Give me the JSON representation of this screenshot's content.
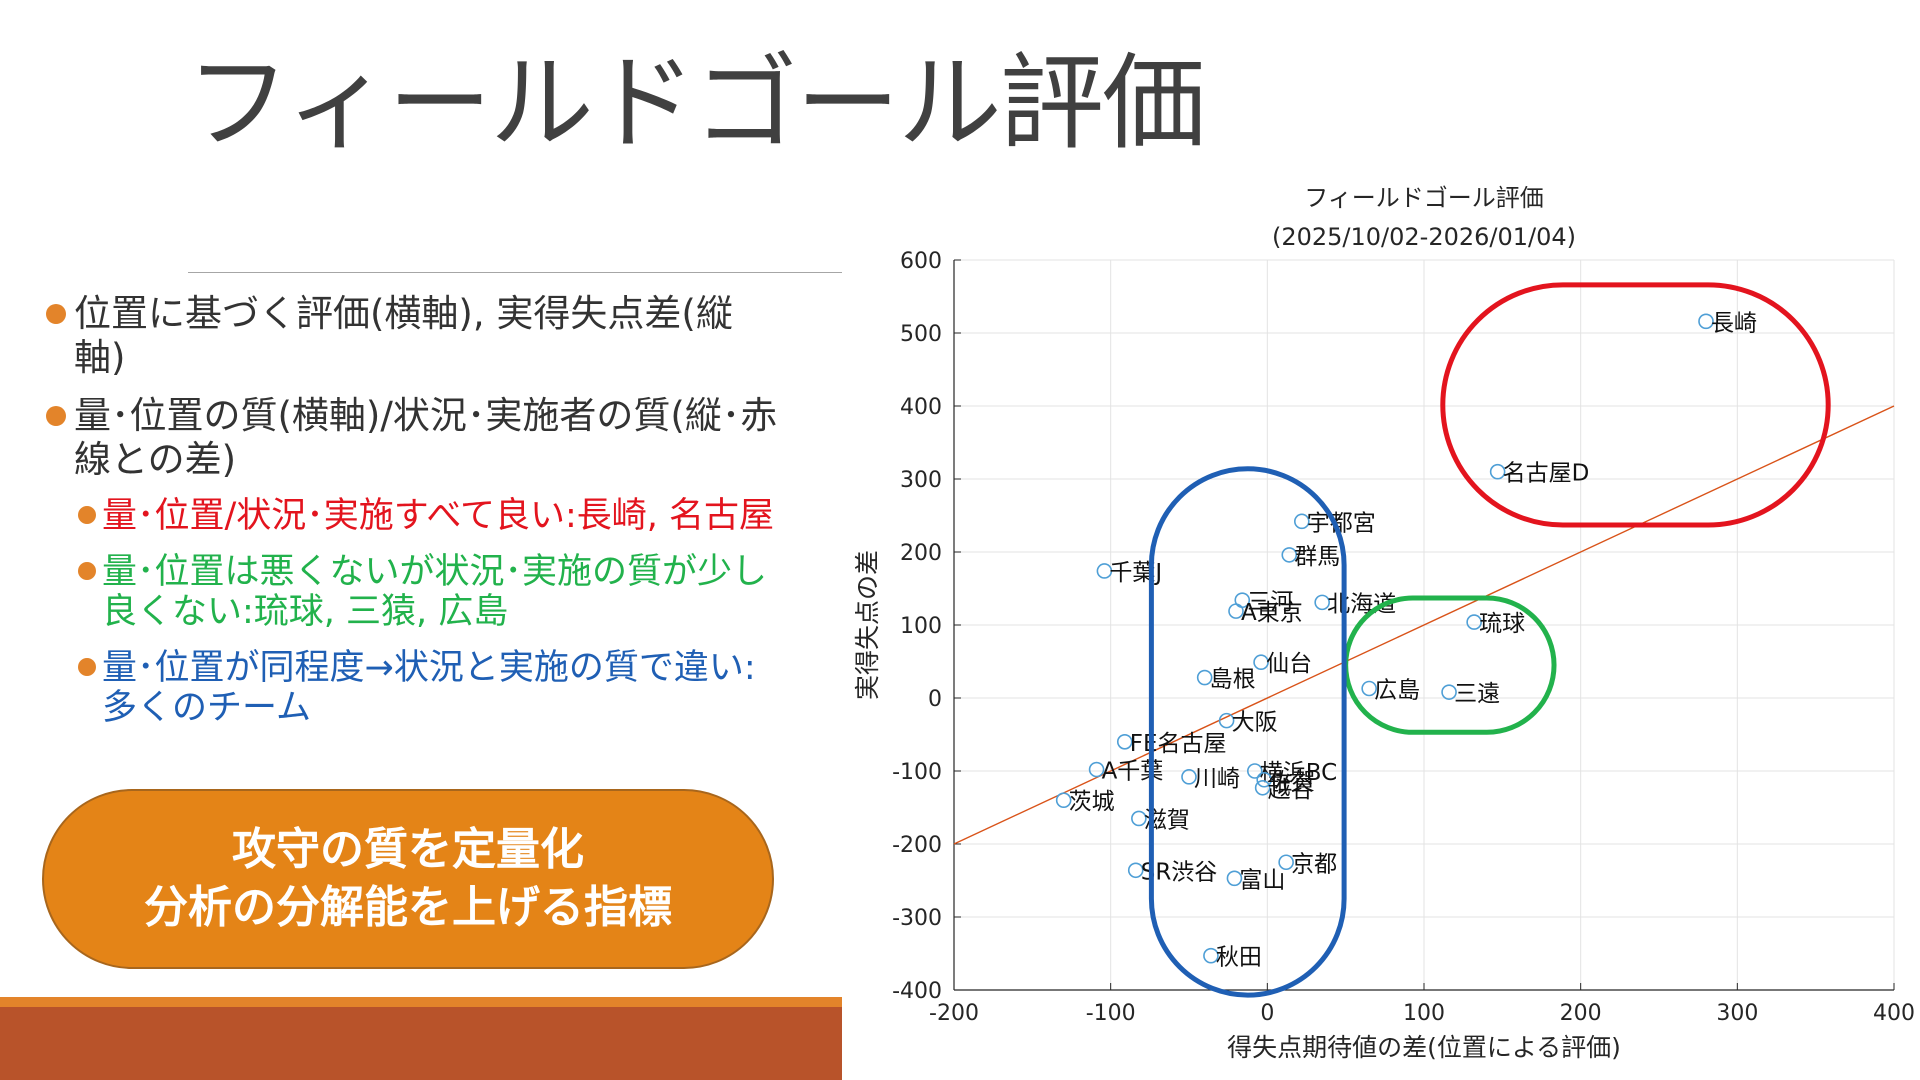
{
  "slide": {
    "title": "フィールドゴール評価",
    "bullets": [
      {
        "text": "位置に基づく評価(横軸), 実得失点差(縦軸)"
      },
      {
        "text": "量･位置の質(横軸)/状況･実施者の質(縦･赤線との差)"
      }
    ],
    "sub_bullets": [
      {
        "text": "量･位置/状況･実施すべて良い:長崎, 名古屋",
        "color": "#e3141e"
      },
      {
        "text": "量･位置は悪くないが状況･実施の質が少し良くない:琉球, 三猿, 広島",
        "color": "#22b24c"
      },
      {
        "text": "量･位置が同程度→状況と実施の質で違い:多くのチーム",
        "color": "#1f5fb4"
      }
    ],
    "callout_line1": "攻守の質を定量化",
    "callout_line2": "分析の分解能を上げる指標",
    "accent_color": "#e3842a",
    "footer_color": "#b8532a"
  },
  "chart_data": {
    "type": "scatter",
    "title": "フィールドゴール評価",
    "subtitle": "(2025/10/02-2026/01/04)",
    "xlabel": "得失点期待値の差(位置による評価)",
    "ylabel": "実得失点の差",
    "xlim": [
      -200,
      400
    ],
    "ylim": [
      -400,
      600
    ],
    "xticks": [
      "-200",
      "-100",
      "0",
      "100",
      "200",
      "300",
      "400"
    ],
    "yticks": [
      "600",
      "500",
      "400",
      "300",
      "200",
      "100",
      "0",
      "-100",
      "-200",
      "-300",
      "-400"
    ],
    "grid": true,
    "marker_color": "#4f9fd6",
    "reference_line": {
      "color": "#d95319",
      "points": [
        [
          -200,
          -200
        ],
        [
          400,
          400
        ]
      ]
    },
    "points": [
      {
        "label": "長崎",
        "x": 280,
        "y": 516
      },
      {
        "label": "名古屋D",
        "x": 147,
        "y": 310
      },
      {
        "label": "宇都宮",
        "x": 22,
        "y": 242
      },
      {
        "label": "群馬",
        "x": 14,
        "y": 196
      },
      {
        "label": "千葉J",
        "x": -104,
        "y": 174
      },
      {
        "label": "三河",
        "x": -16,
        "y": 134
      },
      {
        "label": "北海道",
        "x": 35,
        "y": 131
      },
      {
        "label": "A東京",
        "x": -20,
        "y": 119
      },
      {
        "label": "琉球",
        "x": 132,
        "y": 104
      },
      {
        "label": "仙台",
        "x": -4,
        "y": 49
      },
      {
        "label": "島根",
        "x": -40,
        "y": 28
      },
      {
        "label": "広島",
        "x": 65,
        "y": 13
      },
      {
        "label": "三遠",
        "x": 116,
        "y": 8
      },
      {
        "label": "大阪",
        "x": -26,
        "y": -31
      },
      {
        "label": "FE名古屋",
        "x": -91,
        "y": -60
      },
      {
        "label": "A千葉",
        "x": -109,
        "y": -98
      },
      {
        "label": "横浜BC",
        "x": -8,
        "y": -100
      },
      {
        "label": "川崎",
        "x": -50,
        "y": -108
      },
      {
        "label": "佐賀",
        "x": -2,
        "y": -112
      },
      {
        "label": "越谷",
        "x": -3,
        "y": -123
      },
      {
        "label": "茨城",
        "x": -130,
        "y": -140
      },
      {
        "label": "滋賀",
        "x": -82,
        "y": -165
      },
      {
        "label": "京都",
        "x": 12,
        "y": -225
      },
      {
        "label": "SR渋谷",
        "x": -84,
        "y": -236
      },
      {
        "label": "富山",
        "x": -21,
        "y": -247
      },
      {
        "label": "秋田",
        "x": -36,
        "y": -353
      }
    ],
    "highlight_groups": [
      {
        "name": "good",
        "color": "#e3141e",
        "x_range": [
          112,
          358
        ],
        "y_range": [
          237,
          566
        ]
      },
      {
        "name": "implementation",
        "color": "#22b24c",
        "x_range": [
          50,
          183
        ],
        "y_range": [
          -47,
          137
        ]
      },
      {
        "name": "similar",
        "color": "#1f5fb4",
        "x_range": [
          -74,
          49
        ],
        "y_range": [
          -407,
          314
        ]
      }
    ]
  }
}
